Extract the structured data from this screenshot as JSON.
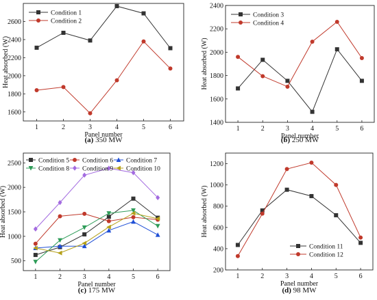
{
  "colors": {
    "black": "#333333",
    "red": "#c0392b",
    "blue": "#1f4fd6",
    "green": "#2e9c58",
    "purple": "#a36be0",
    "olive": "#b5a019"
  },
  "chart_data": [
    {
      "type": "line",
      "caption": "(a) 350 MW",
      "xlabel": "Panel number",
      "ylabel": "Heat absorbed (W)",
      "x": [
        1,
        2,
        3,
        4,
        5,
        6
      ],
      "xticks": [
        1,
        2,
        3,
        4,
        5,
        6
      ],
      "ylim": [
        1500,
        2800
      ],
      "yticks": [
        1600,
        1800,
        2000,
        2200,
        2400,
        2600
      ],
      "legend_position": "top-left",
      "series": [
        {
          "name": "Condition 1",
          "color": "#333333",
          "marker": "square",
          "values": [
            2310,
            2475,
            2390,
            2770,
            2690,
            2305
          ]
        },
        {
          "name": "Condition 2",
          "color": "#c0392b",
          "marker": "circle",
          "values": [
            1840,
            1875,
            1585,
            1950,
            2380,
            2080
          ]
        }
      ]
    },
    {
      "type": "line",
      "caption": "(b) 250 MW",
      "xlabel": "Panel number",
      "ylabel": "Heat absorbed (W)",
      "x": [
        1,
        2,
        3,
        4,
        5,
        6
      ],
      "xticks": [
        1,
        2,
        3,
        4,
        5,
        6
      ],
      "ylim": [
        1400,
        2400
      ],
      "yticks": [
        1400,
        1600,
        1800,
        2000,
        2200,
        2400
      ],
      "legend_position": "top-left",
      "series": [
        {
          "name": "Condition 3",
          "color": "#333333",
          "marker": "square",
          "values": [
            1690,
            1935,
            1755,
            1490,
            2025,
            1755
          ]
        },
        {
          "name": "Condition 4",
          "color": "#c0392b",
          "marker": "circle",
          "values": [
            1960,
            1795,
            1705,
            2090,
            2260,
            1950
          ]
        }
      ]
    },
    {
      "type": "line",
      "caption": "(c) 175 MW",
      "xlabel": "Panel number",
      "ylabel": "Heat absorbed (W)",
      "x": [
        1,
        2,
        3,
        4,
        5,
        6
      ],
      "xticks": [
        1,
        2,
        3,
        4,
        5,
        6
      ],
      "ylim": [
        300,
        2700
      ],
      "yticks": [
        500,
        1000,
        1500,
        2000,
        2500
      ],
      "legend_position": "top",
      "series": [
        {
          "name": "Condition 5",
          "color": "#333333",
          "marker": "square",
          "values": [
            620,
            780,
            1040,
            1400,
            1770,
            1380
          ]
        },
        {
          "name": "Condition 6",
          "color": "#c0392b",
          "marker": "circle",
          "values": [
            850,
            1410,
            1460,
            1310,
            1390,
            1340
          ]
        },
        {
          "name": "Condition 7",
          "color": "#1f4fd6",
          "marker": "triangle-up",
          "values": [
            760,
            800,
            800,
            1120,
            1300,
            1030
          ]
        },
        {
          "name": "Condition 8",
          "color": "#2e9c58",
          "marker": "triangle-down",
          "values": [
            480,
            920,
            1180,
            1470,
            1530,
            1210
          ]
        },
        {
          "name": "Condition 9",
          "color": "#a36be0",
          "marker": "diamond",
          "values": [
            1150,
            1690,
            2250,
            2390,
            2300,
            1790
          ]
        },
        {
          "name": "Condition 10",
          "color": "#b5a019",
          "marker": "triangle-left",
          "values": [
            760,
            660,
            860,
            1190,
            1470,
            1360
          ]
        }
      ]
    },
    {
      "type": "line",
      "caption": "(d) 98 MW",
      "xlabel": "Panel number",
      "ylabel": "Heat absorbed (W)",
      "x": [
        1,
        2,
        3,
        4,
        5,
        6
      ],
      "xticks": [
        1,
        2,
        3,
        4,
        5,
        6
      ],
      "ylim": [
        200,
        1300
      ],
      "yticks": [
        200,
        400,
        600,
        800,
        1000,
        1200
      ],
      "legend_position": "bottom-right",
      "series": [
        {
          "name": "Condition 11",
          "color": "#333333",
          "marker": "square",
          "values": [
            435,
            760,
            955,
            895,
            715,
            455
          ]
        },
        {
          "name": "Condition 12",
          "color": "#c0392b",
          "marker": "circle",
          "values": [
            330,
            730,
            1150,
            1210,
            1000,
            505
          ]
        }
      ]
    }
  ]
}
